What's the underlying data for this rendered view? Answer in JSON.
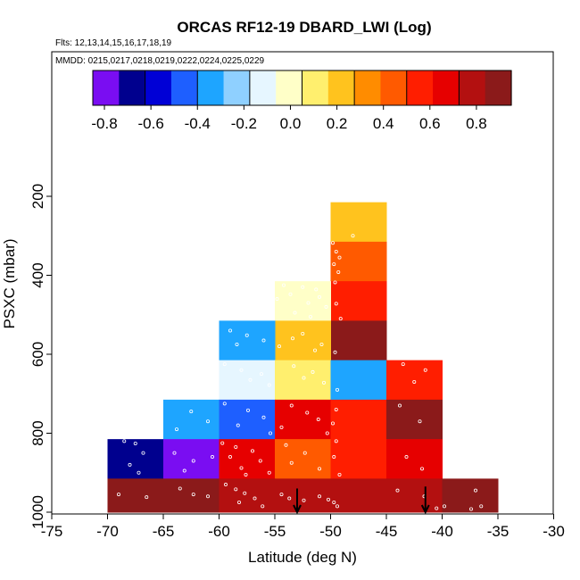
{
  "chart_data": {
    "type": "heatmap",
    "title": "ORCAS RF12-19 DBARD_LWI (Log)",
    "subtitle_flights": "Flts: 12,13,14,15,16,17,18,19",
    "subtitle_dates": "MMDD: 0215,0217,0218,0219,0222,0224,0225,0229",
    "xlabel": "Latitude (deg N)",
    "ylabel": "PSXC (mbar)",
    "xlim": [
      -75,
      -30
    ],
    "ylim": [
      1000,
      100
    ],
    "x_ticks": [
      -75,
      -70,
      -65,
      -60,
      -55,
      -50,
      -45,
      -40,
      -35,
      -30
    ],
    "y_ticks": [
      200,
      400,
      600,
      800,
      1000
    ],
    "colorbar": {
      "range": [
        -0.85,
        0.95
      ],
      "ticks": [
        -0.8,
        -0.6,
        -0.4,
        -0.2,
        0.0,
        0.2,
        0.4,
        0.6,
        0.8
      ],
      "tick_labels": [
        "-0.8",
        "-0.6",
        "-0.4",
        "-0.2",
        "0.0",
        "0.2",
        "0.4",
        "0.6",
        "0.8"
      ],
      "colors": [
        "#7a0df2",
        "#00008e",
        "#0000d6",
        "#1e5fff",
        "#1ea5ff",
        "#8fd0ff",
        "#e6f6ff",
        "#ffffc8",
        "#ffef6e",
        "#ffc31e",
        "#ff8c00",
        "#ff5a00",
        "#ff1e00",
        "#e60000",
        "#b31010",
        "#8b1a1a"
      ]
    },
    "cells": [
      {
        "x": [
          -50,
          -45
        ],
        "y": [
          215,
          315
        ],
        "value": 0.2
      },
      {
        "x": [
          -50,
          -45
        ],
        "y": [
          315,
          415
        ],
        "value": 0.4
      },
      {
        "x": [
          -50,
          -45
        ],
        "y": [
          415,
          515
        ],
        "value": 0.6
      },
      {
        "x": [
          -55,
          -50
        ],
        "y": [
          415,
          515
        ],
        "value": -0.05
      },
      {
        "x": [
          -50,
          -45
        ],
        "y": [
          515,
          615
        ],
        "value": 0.85
      },
      {
        "x": [
          -55,
          -50
        ],
        "y": [
          515,
          615
        ],
        "value": 0.25
      },
      {
        "x": [
          -60,
          -55
        ],
        "y": [
          515,
          615
        ],
        "value": -0.3
      },
      {
        "x": [
          -60,
          -55
        ],
        "y": [
          615,
          715
        ],
        "value": -0.13
      },
      {
        "x": [
          -55,
          -50
        ],
        "y": [
          615,
          715
        ],
        "value": 0.15
      },
      {
        "x": [
          -50,
          -45
        ],
        "y": [
          615,
          715
        ],
        "value": -0.3
      },
      {
        "x": [
          -45,
          -40
        ],
        "y": [
          615,
          715
        ],
        "value": 0.55
      },
      {
        "x": [
          -65,
          -60
        ],
        "y": [
          715,
          815
        ],
        "value": -0.4
      },
      {
        "x": [
          -60,
          -55
        ],
        "y": [
          715,
          815
        ],
        "value": -0.47
      },
      {
        "x": [
          -55,
          -50
        ],
        "y": [
          715,
          815
        ],
        "value": 0.65
      },
      {
        "x": [
          -50,
          -45
        ],
        "y": [
          715,
          815
        ],
        "value": 0.55
      },
      {
        "x": [
          -45,
          -40
        ],
        "y": [
          715,
          815
        ],
        "value": 0.85
      },
      {
        "x": [
          -70,
          -65
        ],
        "y": [
          815,
          915
        ],
        "value": -0.72
      },
      {
        "x": [
          -65,
          -60
        ],
        "y": [
          815,
          915
        ],
        "value": -0.85
      },
      {
        "x": [
          -60,
          -55
        ],
        "y": [
          815,
          915
        ],
        "value": 0.65
      },
      {
        "x": [
          -55,
          -50
        ],
        "y": [
          815,
          915
        ],
        "value": 0.45
      },
      {
        "x": [
          -50,
          -45
        ],
        "y": [
          815,
          915
        ],
        "value": 0.55
      },
      {
        "x": [
          -45,
          -40
        ],
        "y": [
          815,
          915
        ],
        "value": 0.7
      },
      {
        "x": [
          -70,
          -65
        ],
        "y": [
          915,
          1000
        ],
        "value": 0.85
      },
      {
        "x": [
          -65,
          -60
        ],
        "y": [
          915,
          1000
        ],
        "value": 0.85
      },
      {
        "x": [
          -60,
          -55
        ],
        "y": [
          915,
          1000
        ],
        "value": 0.75
      },
      {
        "x": [
          -55,
          -50
        ],
        "y": [
          915,
          1000
        ],
        "value": 0.8
      },
      {
        "x": [
          -50,
          -45
        ],
        "y": [
          915,
          1000
        ],
        "value": 0.8
      },
      {
        "x": [
          -45,
          -40
        ],
        "y": [
          915,
          1000
        ],
        "value": 0.8
      },
      {
        "x": [
          -40,
          -35
        ],
        "y": [
          915,
          1000
        ],
        "value": 0.85
      }
    ],
    "arrows": [
      {
        "lat": -53,
        "from_p": 940,
        "to_p": 1000
      },
      {
        "lat": -41.5,
        "from_p": 935,
        "to_p": 1000
      }
    ],
    "scatter_points": [
      {
        "lat": -48,
        "p": 300
      },
      {
        "lat": -49.8,
        "p": 318
      },
      {
        "lat": -49.5,
        "p": 340
      },
      {
        "lat": -49.2,
        "p": 355
      },
      {
        "lat": -49.7,
        "p": 372
      },
      {
        "lat": -49.3,
        "p": 392
      },
      {
        "lat": -49.6,
        "p": 418
      },
      {
        "lat": -54.2,
        "p": 425
      },
      {
        "lat": -52.5,
        "p": 430
      },
      {
        "lat": -51.3,
        "p": 436
      },
      {
        "lat": -53.6,
        "p": 448
      },
      {
        "lat": -51,
        "p": 455
      },
      {
        "lat": -54.8,
        "p": 460
      },
      {
        "lat": -52,
        "p": 470
      },
      {
        "lat": -49.5,
        "p": 472
      },
      {
        "lat": -50.4,
        "p": 480
      },
      {
        "lat": -53.2,
        "p": 495
      },
      {
        "lat": -51.8,
        "p": 505
      },
      {
        "lat": -49.1,
        "p": 510
      },
      {
        "lat": -59,
        "p": 540
      },
      {
        "lat": -57.5,
        "p": 552
      },
      {
        "lat": -56,
        "p": 565
      },
      {
        "lat": -58.4,
        "p": 575
      },
      {
        "lat": -54.6,
        "p": 580
      },
      {
        "lat": -52.5,
        "p": 548
      },
      {
        "lat": -53.4,
        "p": 560
      },
      {
        "lat": -50.8,
        "p": 575
      },
      {
        "lat": -51.4,
        "p": 590
      },
      {
        "lat": -49.6,
        "p": 595
      },
      {
        "lat": -59.5,
        "p": 625
      },
      {
        "lat": -58,
        "p": 640
      },
      {
        "lat": -56.2,
        "p": 650
      },
      {
        "lat": -57.2,
        "p": 665
      },
      {
        "lat": -55.5,
        "p": 678
      },
      {
        "lat": -53.3,
        "p": 630
      },
      {
        "lat": -51.6,
        "p": 645
      },
      {
        "lat": -52.4,
        "p": 660
      },
      {
        "lat": -50.6,
        "p": 672
      },
      {
        "lat": -49.4,
        "p": 690
      },
      {
        "lat": -43.5,
        "p": 625
      },
      {
        "lat": -41.5,
        "p": 640
      },
      {
        "lat": -42.5,
        "p": 670
      },
      {
        "lat": -62.5,
        "p": 745
      },
      {
        "lat": -61,
        "p": 770
      },
      {
        "lat": -63.8,
        "p": 790
      },
      {
        "lat": -59.5,
        "p": 725
      },
      {
        "lat": -57.4,
        "p": 742
      },
      {
        "lat": -56,
        "p": 760
      },
      {
        "lat": -58.3,
        "p": 780
      },
      {
        "lat": -55.4,
        "p": 800
      },
      {
        "lat": -53.5,
        "p": 730
      },
      {
        "lat": -52.1,
        "p": 748
      },
      {
        "lat": -51.1,
        "p": 765
      },
      {
        "lat": -54.4,
        "p": 785
      },
      {
        "lat": -50.3,
        "p": 800
      },
      {
        "lat": -49.5,
        "p": 740
      },
      {
        "lat": -49.8,
        "p": 775
      },
      {
        "lat": -43.8,
        "p": 730
      },
      {
        "lat": -42,
        "p": 770
      },
      {
        "lat": -68.5,
        "p": 820
      },
      {
        "lat": -67.5,
        "p": 826
      },
      {
        "lat": -66.8,
        "p": 850
      },
      {
        "lat": -68,
        "p": 880
      },
      {
        "lat": -67.2,
        "p": 900
      },
      {
        "lat": -64,
        "p": 850
      },
      {
        "lat": -62.3,
        "p": 870
      },
      {
        "lat": -60.6,
        "p": 860
      },
      {
        "lat": -63.1,
        "p": 895
      },
      {
        "lat": -59.7,
        "p": 825
      },
      {
        "lat": -58.5,
        "p": 835
      },
      {
        "lat": -57,
        "p": 845
      },
      {
        "lat": -59,
        "p": 860
      },
      {
        "lat": -56.3,
        "p": 870
      },
      {
        "lat": -58,
        "p": 888
      },
      {
        "lat": -55.5,
        "p": 900
      },
      {
        "lat": -57.6,
        "p": 905
      },
      {
        "lat": -54,
        "p": 830
      },
      {
        "lat": -52.3,
        "p": 850
      },
      {
        "lat": -53.5,
        "p": 875
      },
      {
        "lat": -51,
        "p": 890
      },
      {
        "lat": -49.5,
        "p": 820
      },
      {
        "lat": -49.7,
        "p": 860
      },
      {
        "lat": -49.2,
        "p": 905
      },
      {
        "lat": -43.2,
        "p": 860
      },
      {
        "lat": -41.8,
        "p": 890
      },
      {
        "lat": -69,
        "p": 955
      },
      {
        "lat": -66.5,
        "p": 962
      },
      {
        "lat": -63.5,
        "p": 940
      },
      {
        "lat": -62.3,
        "p": 955
      },
      {
        "lat": -61,
        "p": 960
      },
      {
        "lat": -59.4,
        "p": 930
      },
      {
        "lat": -58.5,
        "p": 942
      },
      {
        "lat": -57.7,
        "p": 952
      },
      {
        "lat": -56.8,
        "p": 965
      },
      {
        "lat": -58.2,
        "p": 975
      },
      {
        "lat": -56.1,
        "p": 985
      },
      {
        "lat": -54.4,
        "p": 955
      },
      {
        "lat": -53.7,
        "p": 965
      },
      {
        "lat": -52.4,
        "p": 970
      },
      {
        "lat": -51,
        "p": 960
      },
      {
        "lat": -50.2,
        "p": 968
      },
      {
        "lat": -49.7,
        "p": 975
      },
      {
        "lat": -49.4,
        "p": 985
      },
      {
        "lat": -44,
        "p": 945
      },
      {
        "lat": -41.6,
        "p": 960
      },
      {
        "lat": -40.5,
        "p": 990
      },
      {
        "lat": -39.8,
        "p": 985
      },
      {
        "lat": -37,
        "p": 945
      },
      {
        "lat": -36.5,
        "p": 985
      },
      {
        "lat": -37.4,
        "p": 992
      }
    ]
  }
}
